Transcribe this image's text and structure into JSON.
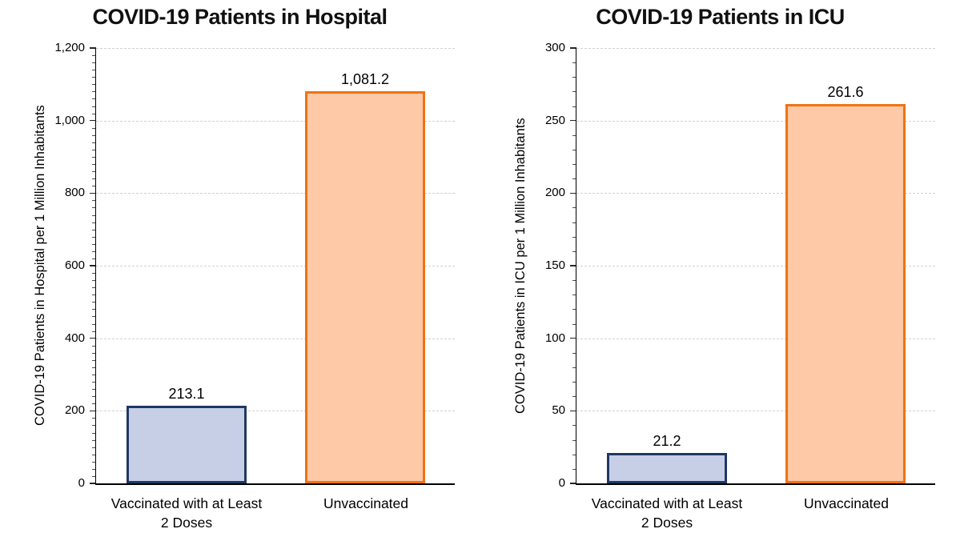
{
  "figure": {
    "background": "#FFFFFF"
  },
  "colors": {
    "vaccinated_fill": "#C7CFE7",
    "vaccinated_border": "#1F3864",
    "unvaccinated_fill": "#FEC9A6",
    "unvaccinated_border": "#F07214",
    "gridline": "#D1D1D1",
    "axis": "#000000",
    "text": "#000000"
  },
  "chart_data": [
    {
      "type": "bar",
      "title": "COVID-19 Patients in Hospital",
      "ylabel": "COVID-19 Patients in Hospital per 1 Million Inhabitants",
      "xlabel": "",
      "categories": [
        "Vaccinated with at Least 2 Doses",
        "Unvaccinated"
      ],
      "values": [
        213.1,
        1081.2
      ],
      "value_labels": [
        "213.1",
        "1,081.2"
      ],
      "ylim": [
        0,
        1200
      ],
      "ytick_interval": 200,
      "minor_tick_interval": 20,
      "ytick_values": [
        0,
        200,
        400,
        600,
        800,
        1000,
        1200
      ],
      "ytick_labels": [
        "0",
        "200",
        "400",
        "600",
        "800",
        "1,000",
        "1,200"
      ],
      "grid": "horizontal-dashed",
      "legend": "none"
    },
    {
      "type": "bar",
      "title": "COVID-19 Patients in ICU",
      "ylabel": "COVID-19 Patients in ICU  per 1 Million Inhabitants",
      "xlabel": "",
      "categories": [
        "Vaccinated with at Least 2 Doses",
        "Unvaccinated"
      ],
      "values": [
        21.2,
        261.6
      ],
      "value_labels": [
        "21.2",
        "261.6"
      ],
      "ylim": [
        0,
        300
      ],
      "ytick_interval": 50,
      "minor_tick_interval": 10,
      "ytick_values": [
        0,
        50,
        100,
        150,
        200,
        250,
        300
      ],
      "ytick_labels": [
        "0",
        "50",
        "100",
        "150",
        "200",
        "250",
        "300"
      ],
      "grid": "horizontal-dashed",
      "legend": "none"
    }
  ]
}
